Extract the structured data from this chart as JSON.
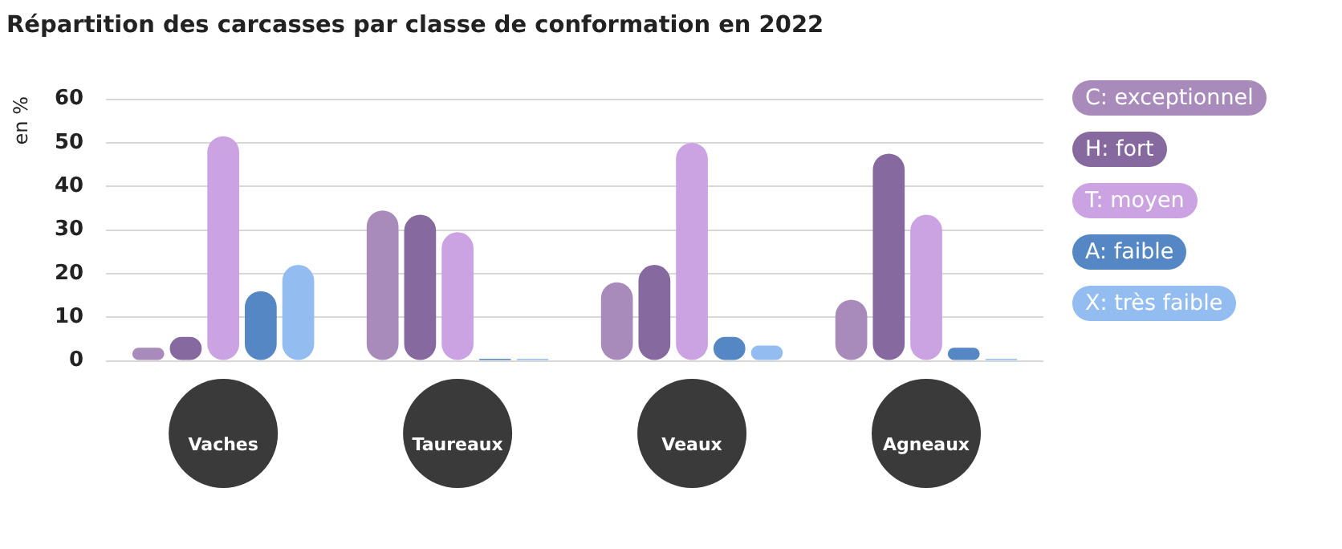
{
  "chart_data": {
    "type": "bar",
    "title": "Répartition des carcasses par classe de conformation en 2022",
    "ylabel": "en %",
    "categories": [
      "Vaches",
      "Taureaux",
      "Veaux",
      "Agneaux"
    ],
    "series": [
      {
        "name": "C: exceptionnel",
        "color": "#a88bbb",
        "values": [
          3,
          34.5,
          18,
          14
        ]
      },
      {
        "name": "H: fort",
        "color": "#86699e",
        "values": [
          5.5,
          33.5,
          22,
          47.5
        ]
      },
      {
        "name": "T: moyen",
        "color": "#cba3e2",
        "values": [
          51.5,
          29.5,
          50,
          33.5
        ]
      },
      {
        "name": "A: faible",
        "color": "#5487c3",
        "values": [
          16,
          0.5,
          5.5,
          3
        ]
      },
      {
        "name": "X: très faible",
        "color": "#93bdf1",
        "values": [
          22,
          0.5,
          3.5,
          0.5
        ]
      }
    ],
    "ylim": [
      0,
      60
    ],
    "yticks": [
      0,
      10,
      20,
      30,
      40,
      50,
      60
    ],
    "grid": "y",
    "legend": "right"
  }
}
